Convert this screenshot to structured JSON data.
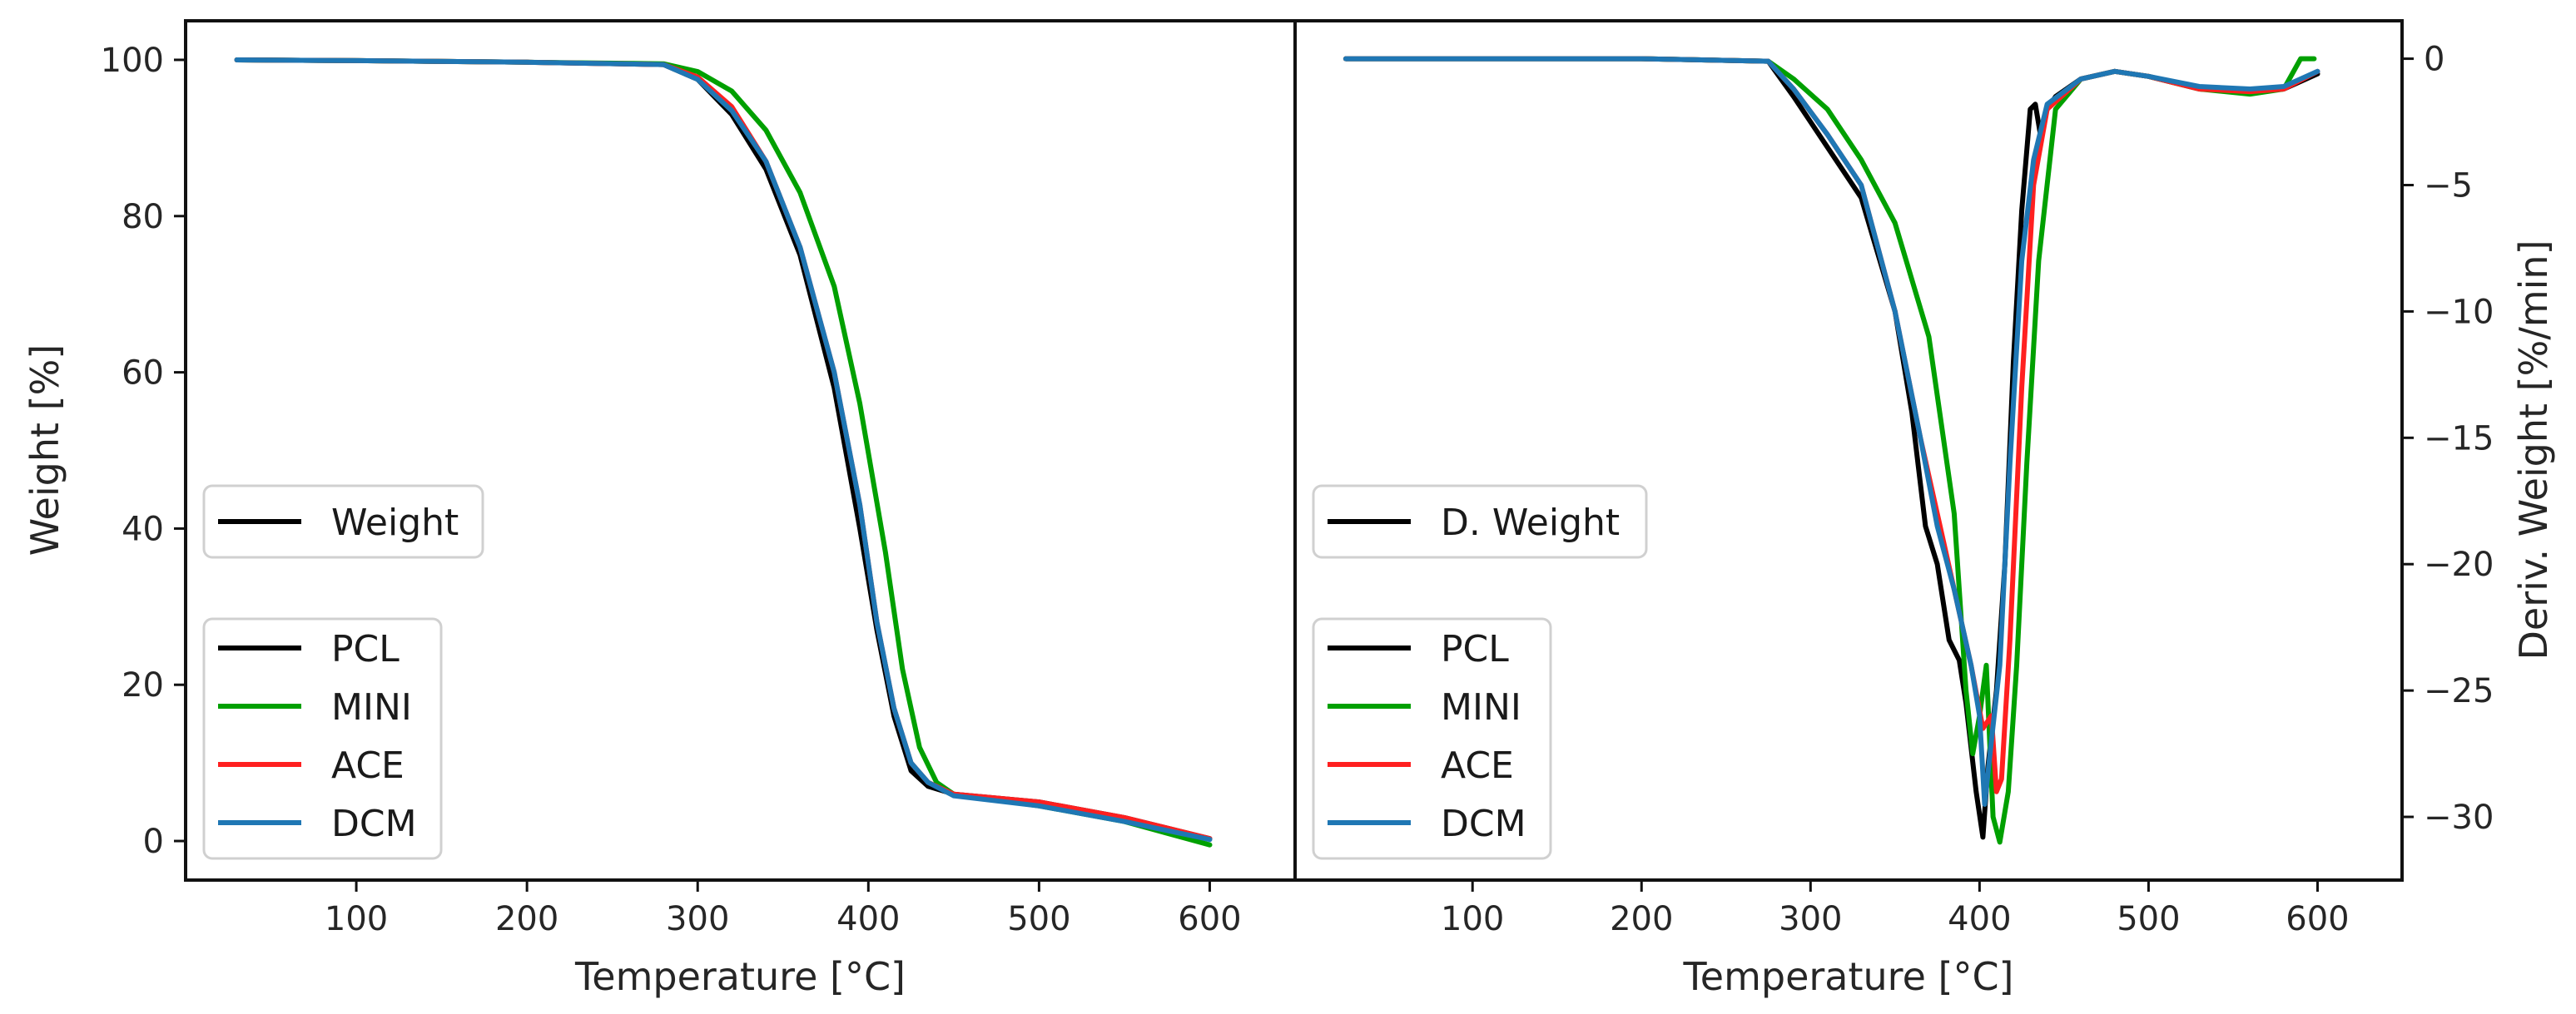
{
  "chart_data": [
    {
      "type": "line",
      "title": "",
      "xlabel": "Temperature [°C]",
      "ylabel": "Weight [%]",
      "xlim": [
        0,
        650
      ],
      "ylim": [
        -5,
        105
      ],
      "xticks": [
        100,
        200,
        300,
        400,
        500,
        600
      ],
      "yticks": [
        0,
        20,
        40,
        60,
        80,
        100
      ],
      "grid": false,
      "legends": [
        {
          "placement": "center-left",
          "entries": [
            {
              "label": "Weight",
              "color": "#000000"
            }
          ]
        },
        {
          "placement": "lower-left",
          "entries": [
            {
              "label": "PCL",
              "color": "#000000"
            },
            {
              "label": "MINI",
              "color": "#00a000"
            },
            {
              "label": "ACE",
              "color": "#ff2020"
            },
            {
              "label": "DCM",
              "color": "#1f77b4"
            }
          ]
        }
      ],
      "series": [
        {
          "name": "PCL",
          "color": "#000000",
          "points": [
            [
              30,
              100
            ],
            [
              100,
              99.9
            ],
            [
              200,
              99.7
            ],
            [
              280,
              99.4
            ],
            [
              300,
              97.5
            ],
            [
              320,
              93
            ],
            [
              340,
              86
            ],
            [
              360,
              75
            ],
            [
              380,
              58
            ],
            [
              395,
              40
            ],
            [
              405,
              27
            ],
            [
              415,
              16
            ],
            [
              425,
              9
            ],
            [
              435,
              7
            ],
            [
              450,
              6
            ],
            [
              500,
              5
            ],
            [
              550,
              3
            ],
            [
              600,
              0.3
            ]
          ]
        },
        {
          "name": "MINI",
          "color": "#00a000",
          "points": [
            [
              30,
              100
            ],
            [
              100,
              99.9
            ],
            [
              200,
              99.7
            ],
            [
              280,
              99.5
            ],
            [
              300,
              98.5
            ],
            [
              320,
              96
            ],
            [
              340,
              91
            ],
            [
              360,
              83
            ],
            [
              380,
              71
            ],
            [
              395,
              56
            ],
            [
              410,
              37
            ],
            [
              420,
              22
            ],
            [
              430,
              12
            ],
            [
              440,
              7.5
            ],
            [
              450,
              6
            ],
            [
              500,
              4.5
            ],
            [
              550,
              2.5
            ],
            [
              600,
              -0.5
            ]
          ]
        },
        {
          "name": "ACE",
          "color": "#ff2020",
          "points": [
            [
              30,
              100
            ],
            [
              100,
              99.9
            ],
            [
              200,
              99.7
            ],
            [
              280,
              99.4
            ],
            [
              300,
              97.8
            ],
            [
              320,
              94
            ],
            [
              340,
              87
            ],
            [
              360,
              76
            ],
            [
              380,
              60
            ],
            [
              395,
              43
            ],
            [
              405,
              28
            ],
            [
              415,
              17
            ],
            [
              425,
              10
            ],
            [
              435,
              7.5
            ],
            [
              450,
              6
            ],
            [
              500,
              5
            ],
            [
              550,
              3
            ],
            [
              600,
              0.3
            ]
          ]
        },
        {
          "name": "DCM",
          "color": "#1f77b4",
          "points": [
            [
              30,
              100
            ],
            [
              100,
              99.9
            ],
            [
              200,
              99.7
            ],
            [
              280,
              99.4
            ],
            [
              300,
              97.5
            ],
            [
              320,
              93.5
            ],
            [
              340,
              87
            ],
            [
              360,
              76
            ],
            [
              380,
              60
            ],
            [
              395,
              43
            ],
            [
              405,
              28
            ],
            [
              415,
              17
            ],
            [
              425,
              10
            ],
            [
              435,
              7.5
            ],
            [
              450,
              5.8
            ],
            [
              500,
              4.5
            ],
            [
              550,
              2.5
            ],
            [
              600,
              0.2
            ]
          ]
        }
      ]
    },
    {
      "type": "line",
      "title": "",
      "xlabel": "Temperature [°C]",
      "ylabel": "Deriv. Weight [%/min]",
      "yaxis_side": "right",
      "xlim": [
        -5,
        650
      ],
      "ylim": [
        -32.5,
        1.5
      ],
      "xticks": [
        100,
        200,
        300,
        400,
        500,
        600
      ],
      "yticks": [
        0,
        -5,
        -10,
        -15,
        -20,
        -25,
        -30
      ],
      "ytick_labels": [
        "0",
        "−5",
        "−10",
        "−15",
        "−20",
        "−25",
        "−30"
      ],
      "grid": false,
      "legends": [
        {
          "placement": "center-left",
          "entries": [
            {
              "label": "D. Weight",
              "color": "#000000"
            }
          ]
        },
        {
          "placement": "lower-left",
          "entries": [
            {
              "label": "PCL",
              "color": "#000000"
            },
            {
              "label": "MINI",
              "color": "#00a000"
            },
            {
              "label": "ACE",
              "color": "#ff2020"
            },
            {
              "label": "DCM",
              "color": "#1f77b4"
            }
          ]
        }
      ],
      "series": [
        {
          "name": "PCL",
          "color": "#000000",
          "points": [
            [
              25,
              0
            ],
            [
              100,
              0
            ],
            [
              200,
              0
            ],
            [
              275,
              -0.1
            ],
            [
              290,
              -1.5
            ],
            [
              300,
              -2.5
            ],
            [
              310,
              -3.5
            ],
            [
              330,
              -5.5
            ],
            [
              350,
              -10
            ],
            [
              360,
              -14
            ],
            [
              368,
              -18.5
            ],
            [
              375,
              -20
            ],
            [
              382,
              -23
            ],
            [
              388,
              -23.8
            ],
            [
              392,
              -25.5
            ],
            [
              398,
              -29
            ],
            [
              402,
              -30.8
            ],
            [
              405,
              -28
            ],
            [
              410,
              -25
            ],
            [
              415,
              -20
            ],
            [
              420,
              -12
            ],
            [
              425,
              -6
            ],
            [
              430,
              -2
            ],
            [
              433,
              -1.8
            ],
            [
              436,
              -3
            ],
            [
              440,
              -2
            ],
            [
              445,
              -1.5
            ],
            [
              460,
              -0.8
            ],
            [
              480,
              -0.5
            ],
            [
              500,
              -0.7
            ],
            [
              530,
              -1.2
            ],
            [
              560,
              -1.3
            ],
            [
              580,
              -1.2
            ],
            [
              600,
              -0.6
            ]
          ]
        },
        {
          "name": "MINI",
          "color": "#00a000",
          "points": [
            [
              25,
              0
            ],
            [
              100,
              0
            ],
            [
              200,
              0
            ],
            [
              275,
              -0.1
            ],
            [
              290,
              -0.8
            ],
            [
              310,
              -2
            ],
            [
              330,
              -4
            ],
            [
              350,
              -6.5
            ],
            [
              370,
              -11
            ],
            [
              385,
              -18
            ],
            [
              392,
              -25
            ],
            [
              396,
              -27.5
            ],
            [
              400,
              -26
            ],
            [
              404,
              -24
            ],
            [
              408,
              -30
            ],
            [
              412,
              -31
            ],
            [
              417,
              -29
            ],
            [
              422,
              -24
            ],
            [
              428,
              -16
            ],
            [
              435,
              -8
            ],
            [
              445,
              -2
            ],
            [
              460,
              -0.8
            ],
            [
              480,
              -0.5
            ],
            [
              500,
              -0.7
            ],
            [
              530,
              -1.2
            ],
            [
              560,
              -1.4
            ],
            [
              580,
              -1.2
            ],
            [
              590,
              0
            ],
            [
              598,
              0
            ]
          ]
        },
        {
          "name": "ACE",
          "color": "#ff2020",
          "points": [
            [
              25,
              0
            ],
            [
              100,
              0
            ],
            [
              200,
              0
            ],
            [
              275,
              -0.1
            ],
            [
              290,
              -1.2
            ],
            [
              310,
              -3
            ],
            [
              330,
              -5
            ],
            [
              350,
              -10
            ],
            [
              365,
              -15
            ],
            [
              375,
              -18
            ],
            [
              385,
              -21
            ],
            [
              395,
              -24
            ],
            [
              402,
              -26.5
            ],
            [
              407,
              -26
            ],
            [
              410,
              -29
            ],
            [
              413,
              -28.5
            ],
            [
              418,
              -23
            ],
            [
              425,
              -13
            ],
            [
              432,
              -5
            ],
            [
              440,
              -2
            ],
            [
              460,
              -0.8
            ],
            [
              480,
              -0.5
            ],
            [
              500,
              -0.7
            ],
            [
              530,
              -1.2
            ],
            [
              560,
              -1.3
            ],
            [
              580,
              -1.2
            ],
            [
              600,
              -0.5
            ]
          ]
        },
        {
          "name": "DCM",
          "color": "#1f77b4",
          "points": [
            [
              25,
              0
            ],
            [
              100,
              0
            ],
            [
              200,
              0
            ],
            [
              275,
              -0.1
            ],
            [
              290,
              -1.2
            ],
            [
              310,
              -3
            ],
            [
              330,
              -5
            ],
            [
              350,
              -10
            ],
            [
              365,
              -15
            ],
            [
              375,
              -18.5
            ],
            [
              385,
              -21
            ],
            [
              395,
              -24
            ],
            [
              400,
              -26
            ],
            [
              403,
              -29.5
            ],
            [
              407,
              -27
            ],
            [
              412,
              -24
            ],
            [
              418,
              -16
            ],
            [
              425,
              -8
            ],
            [
              432,
              -4
            ],
            [
              440,
              -1.8
            ],
            [
              460,
              -0.8
            ],
            [
              480,
              -0.5
            ],
            [
              500,
              -0.7
            ],
            [
              530,
              -1.1
            ],
            [
              560,
              -1.2
            ],
            [
              580,
              -1.1
            ],
            [
              600,
              -0.5
            ]
          ]
        }
      ]
    }
  ]
}
